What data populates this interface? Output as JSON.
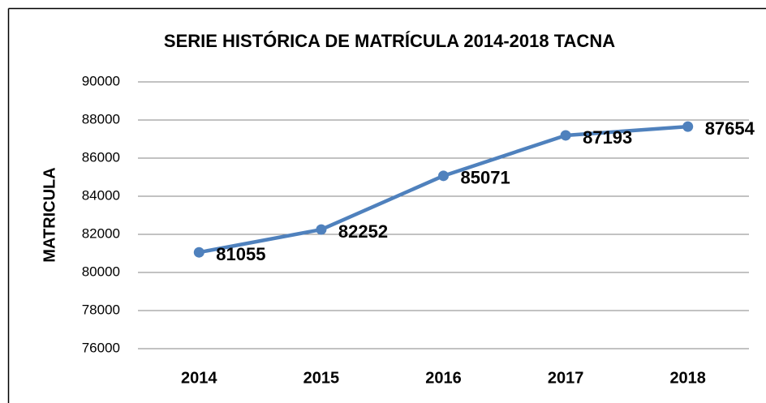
{
  "chart_data": {
    "type": "line",
    "title": "SERIE HISTÓRICA DE MATRÍCULA 2014-2018  TACNA",
    "y_label": "MATRICULA",
    "categories": [
      "2014",
      "2015",
      "2016",
      "2017",
      "2018"
    ],
    "values": [
      81055,
      82252,
      85071,
      87193,
      87654
    ],
    "color": "#4f81bd",
    "ylim": [
      76000,
      90000
    ],
    "yticks": [
      76000,
      78000,
      80000,
      82000,
      84000,
      86000,
      88000,
      90000
    ],
    "grid": true
  }
}
